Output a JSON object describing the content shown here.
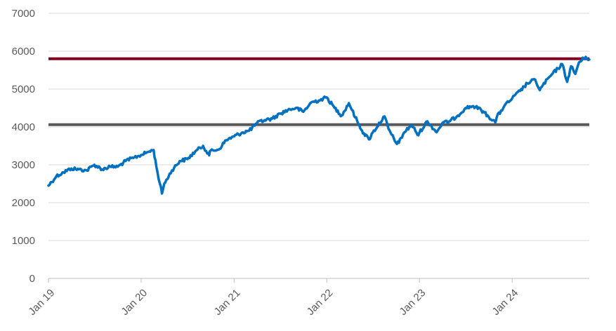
{
  "chart_data": {
    "type": "line",
    "title": "",
    "xlabel": "",
    "ylabel": "",
    "ylim": [
      0,
      7000
    ],
    "xlim": [
      "2019-01-01",
      "2024-10-31"
    ],
    "grid": true,
    "y_ticks": [
      "0",
      "1000",
      "2000",
      "3000",
      "4000",
      "5000",
      "6000",
      "7000"
    ],
    "x_ticks": [
      {
        "date": "2019-01-01",
        "label": "Jan 19"
      },
      {
        "date": "2020-01-01",
        "label": "Jan 20"
      },
      {
        "date": "2021-01-01",
        "label": "Jan 21"
      },
      {
        "date": "2022-01-01",
        "label": "Jan 22"
      },
      {
        "date": "2023-01-01",
        "label": "Jan 23"
      },
      {
        "date": "2024-01-01",
        "label": "Jan 24"
      }
    ],
    "series": [
      {
        "color": "#0070c0",
        "points": [
          [
            "2019-01-01",
            2450
          ],
          [
            "2019-02-01",
            2700
          ],
          [
            "2019-03-01",
            2800
          ],
          [
            "2019-04-01",
            2900
          ],
          [
            "2019-05-01",
            2880
          ],
          [
            "2019-06-01",
            2850
          ],
          [
            "2019-07-01",
            3000
          ],
          [
            "2019-08-01",
            2880
          ],
          [
            "2019-09-01",
            2950
          ],
          [
            "2019-10-01",
            2950
          ],
          [
            "2019-11-01",
            3100
          ],
          [
            "2019-12-01",
            3180
          ],
          [
            "2020-01-01",
            3260
          ],
          [
            "2020-02-01",
            3350
          ],
          [
            "2020-02-19",
            3390
          ],
          [
            "2020-03-01",
            2950
          ],
          [
            "2020-03-23",
            2240
          ],
          [
            "2020-04-01",
            2500
          ],
          [
            "2020-05-01",
            2850
          ],
          [
            "2020-06-01",
            3100
          ],
          [
            "2020-07-01",
            3150
          ],
          [
            "2020-08-01",
            3350
          ],
          [
            "2020-09-01",
            3500
          ],
          [
            "2020-09-25",
            3250
          ],
          [
            "2020-10-01",
            3380
          ],
          [
            "2020-11-01",
            3400
          ],
          [
            "2020-12-01",
            3650
          ],
          [
            "2021-01-01",
            3750
          ],
          [
            "2021-02-01",
            3850
          ],
          [
            "2021-03-01",
            3900
          ],
          [
            "2021-04-01",
            4100
          ],
          [
            "2021-05-01",
            4180
          ],
          [
            "2021-06-01",
            4220
          ],
          [
            "2021-07-01",
            4350
          ],
          [
            "2021-08-01",
            4450
          ],
          [
            "2021-09-01",
            4500
          ],
          [
            "2021-10-01",
            4400
          ],
          [
            "2021-11-01",
            4650
          ],
          [
            "2021-12-01",
            4700
          ],
          [
            "2022-01-01",
            4780
          ],
          [
            "2022-02-01",
            4500
          ],
          [
            "2022-03-01",
            4300
          ],
          [
            "2022-03-29",
            4630
          ],
          [
            "2022-05-01",
            4150
          ],
          [
            "2022-05-20",
            3900
          ],
          [
            "2022-06-16",
            3670
          ],
          [
            "2022-07-01",
            3850
          ],
          [
            "2022-08-16",
            4280
          ],
          [
            "2022-09-01",
            3950
          ],
          [
            "2022-09-30",
            3590
          ],
          [
            "2022-10-12",
            3580
          ],
          [
            "2022-11-01",
            3850
          ],
          [
            "2022-12-01",
            4050
          ],
          [
            "2022-12-28",
            3780
          ],
          [
            "2023-01-01",
            3850
          ],
          [
            "2023-02-01",
            4150
          ],
          [
            "2023-03-10",
            3860
          ],
          [
            "2023-04-01",
            4100
          ],
          [
            "2023-05-01",
            4150
          ],
          [
            "2023-06-01",
            4300
          ],
          [
            "2023-07-01",
            4500
          ],
          [
            "2023-08-01",
            4550
          ],
          [
            "2023-09-01",
            4450
          ],
          [
            "2023-10-27",
            4120
          ],
          [
            "2023-11-01",
            4250
          ],
          [
            "2023-12-01",
            4550
          ],
          [
            "2024-01-01",
            4750
          ],
          [
            "2024-02-01",
            4950
          ],
          [
            "2024-03-01",
            5150
          ],
          [
            "2024-04-01",
            5250
          ],
          [
            "2024-04-19",
            4970
          ],
          [
            "2024-05-01",
            5100
          ],
          [
            "2024-06-01",
            5350
          ],
          [
            "2024-07-16",
            5660
          ],
          [
            "2024-08-05",
            5190
          ],
          [
            "2024-08-20",
            5600
          ],
          [
            "2024-09-06",
            5400
          ],
          [
            "2024-09-20",
            5700
          ],
          [
            "2024-10-17",
            5850
          ],
          [
            "2024-10-31",
            5780
          ]
        ]
      }
    ],
    "reference_lines": [
      {
        "value": 5800,
        "color": "#800020"
      },
      {
        "value": 4060,
        "color": "#595959"
      }
    ]
  }
}
